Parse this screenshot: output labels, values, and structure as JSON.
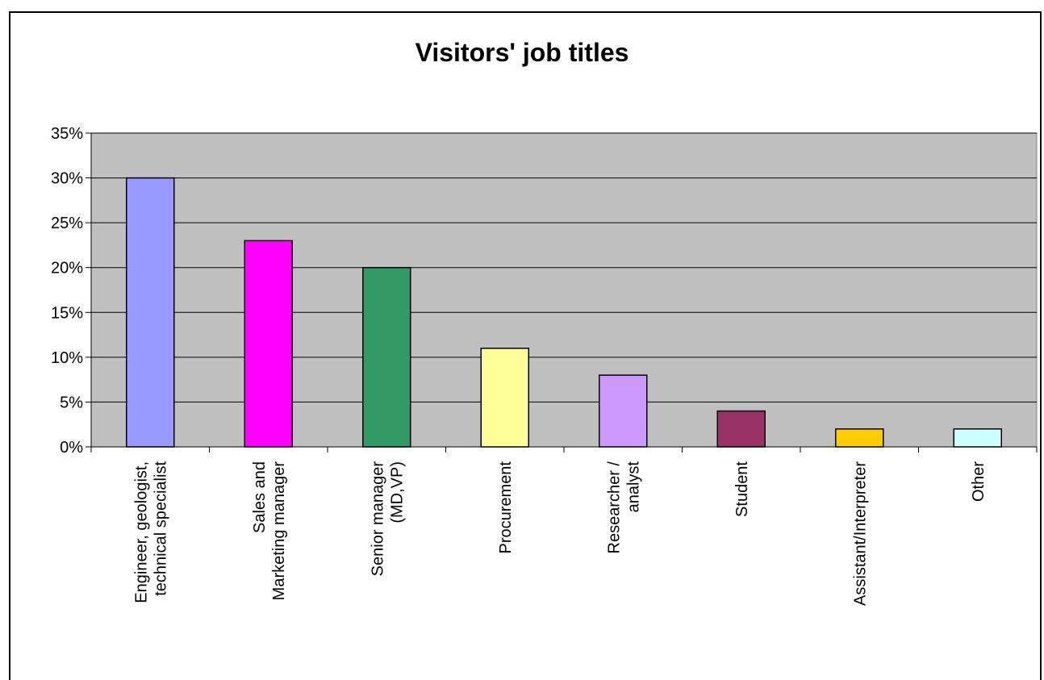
{
  "chart_data": {
    "type": "bar",
    "title": "Visitors' job titles",
    "categories": [
      [
        "Engineer, geologist,",
        "technical specialist"
      ],
      [
        "Sales and",
        "Marketing manager"
      ],
      [
        "Senior manager",
        "(MD,VP)"
      ],
      [
        "Procurement"
      ],
      [
        "Researcher /",
        "analyst"
      ],
      [
        "Student"
      ],
      [
        "Assistant/Interpreter"
      ],
      [
        "Other"
      ]
    ],
    "values": [
      30,
      23,
      20,
      11,
      8,
      4,
      2,
      2
    ],
    "bar_colors": [
      "#9999ff",
      "#ff00ff",
      "#339966",
      "#ffff99",
      "#cc99ff",
      "#993366",
      "#ffcc00",
      "#ccffff"
    ],
    "plot_background": "#c0c0c0",
    "ylim": [
      0,
      35
    ],
    "yticks": [
      "0%",
      "5%",
      "10%",
      "15%",
      "20%",
      "25%",
      "30%",
      "35%"
    ],
    "xlabel": "",
    "ylabel": "",
    "grid": true,
    "legend": false
  }
}
